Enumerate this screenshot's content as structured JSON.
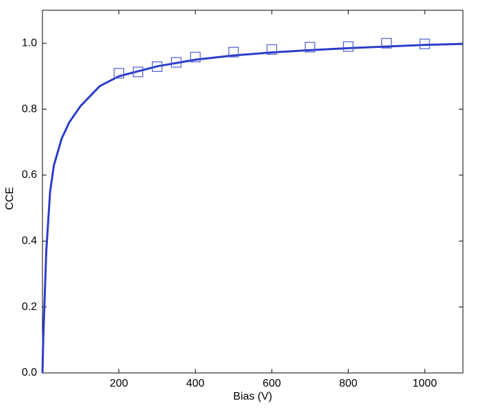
{
  "chart_data": {
    "type": "scatter",
    "xlabel": "Bias (V)",
    "ylabel": "CCE",
    "xlim": [
      0,
      1100
    ],
    "ylim": [
      0,
      1.1
    ],
    "xticks": [
      200,
      400,
      600,
      800,
      1000
    ],
    "yticks": [
      {
        "value": 0,
        "label": "0.0"
      },
      0.2,
      0.4,
      0.6,
      0.8,
      {
        "value": 1,
        "label": "1.0"
      }
    ],
    "curve": {
      "color": "#2a3cc8",
      "x": [
        0,
        2,
        5,
        10,
        20,
        30,
        50,
        70,
        100,
        150,
        200,
        300,
        400,
        500,
        600,
        700,
        800,
        900,
        1000,
        1100
      ],
      "values": [
        0,
        0.1,
        0.2,
        0.37,
        0.55,
        0.63,
        0.71,
        0.76,
        0.81,
        0.87,
        0.9,
        0.93,
        0.95,
        0.963,
        0.972,
        0.979,
        0.985,
        0.99,
        0.995,
        0.998
      ]
    },
    "points": {
      "color": "#4a5ad0",
      "x": [
        200,
        250,
        300,
        350,
        400,
        500,
        600,
        700,
        800,
        900,
        1000
      ],
      "values": [
        0.909,
        0.913,
        0.929,
        0.942,
        0.958,
        0.973,
        0.981,
        0.988,
        0.99,
        1.0,
        0.998
      ]
    }
  }
}
